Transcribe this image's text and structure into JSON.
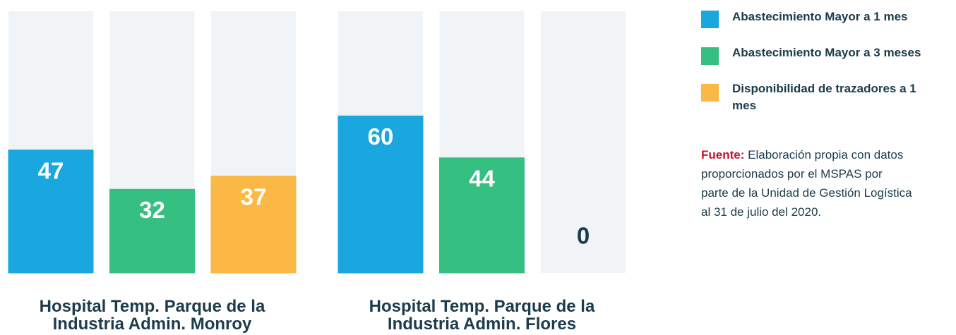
{
  "chart_data": {
    "type": "bar",
    "categories": [
      "Hospital Temp. Parque de la Industria Admin. Monroy",
      "Hospital Temp. Parque de la Industria Admin. Flores"
    ],
    "series": [
      {
        "name": "Abastecimiento Mayor a 1 mes",
        "color": "#1aa7e0",
        "values": [
          47,
          60
        ]
      },
      {
        "name": "Abastecimiento Mayor a 3 meses",
        "color": "#35bf81",
        "values": [
          32,
          44
        ]
      },
      {
        "name": "Disponibilidad de trazadores a 1 mes",
        "color": "#fbb845",
        "values": [
          37,
          0
        ]
      }
    ],
    "ylim": [
      0,
      100
    ],
    "legend": "right",
    "note_label": "Fuente:",
    "note": "Elaboración propia con datos proporcionados por el MSPAS por parte de la Unidad de Gestión Logística al 31 de julio del 2020."
  }
}
